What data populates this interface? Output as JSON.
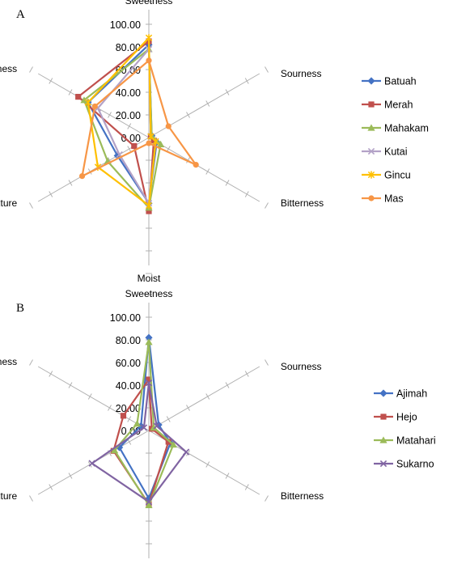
{
  "chart_data": [
    {
      "panel_label": "A",
      "type": "radar",
      "axes": [
        "Sweetness",
        "Sourness",
        "Bitterness",
        "Moist",
        "Texture",
        "Stickiness"
      ],
      "rlim": [
        0,
        100
      ],
      "tick_labels": [
        "0.00",
        "20.00",
        "40.00",
        "60.00",
        "80.00",
        "100.00"
      ],
      "legend_position": "right",
      "series": [
        {
          "name": "Batuah",
          "color": "#4472C4",
          "marker": "diamond",
          "values": [
            82,
            3,
            8,
            58,
            32,
            62
          ]
        },
        {
          "name": "Merah",
          "color": "#C0504D",
          "marker": "square",
          "values": [
            85,
            2,
            5,
            65,
            15,
            72
          ]
        },
        {
          "name": "Mahakam",
          "color": "#9BBB59",
          "marker": "triangle",
          "values": [
            78,
            3,
            12,
            62,
            42,
            66
          ]
        },
        {
          "name": "Kutai",
          "color": "#B3A2C7",
          "marker": "x",
          "values": [
            78,
            2,
            7,
            58,
            30,
            52
          ]
        },
        {
          "name": "Gincu",
          "color": "#FFC000",
          "marker": "star",
          "values": [
            88,
            2,
            7,
            60,
            52,
            62
          ]
        },
        {
          "name": "Mas",
          "color": "#F79646",
          "marker": "circle",
          "values": [
            68,
            20,
            48,
            5,
            68,
            55
          ]
        }
      ]
    },
    {
      "panel_label": "B",
      "type": "radar",
      "axes": [
        "Sweetness",
        "Sourness",
        "Bitterness",
        "Moist",
        "Texture",
        "Stickiness"
      ],
      "rlim": [
        0,
        100
      ],
      "tick_labels": [
        "0.00",
        "20.00",
        "40.00",
        "60.00",
        "80.00",
        "100.00"
      ],
      "legend_position": "right",
      "series": [
        {
          "name": "Ajimah",
          "color": "#4472C4",
          "marker": "diamond",
          "values": [
            82,
            10,
            22,
            60,
            30,
            8
          ]
        },
        {
          "name": "Hejo",
          "color": "#C0504D",
          "marker": "square",
          "values": [
            45,
            3,
            20,
            65,
            36,
            26
          ]
        },
        {
          "name": "Matahari",
          "color": "#9BBB59",
          "marker": "triangle",
          "values": [
            78,
            5,
            25,
            66,
            35,
            12
          ]
        },
        {
          "name": "Sukarno",
          "color": "#8064A2",
          "marker": "x",
          "values": [
            42,
            8,
            38,
            63,
            58,
            5
          ]
        }
      ]
    }
  ]
}
